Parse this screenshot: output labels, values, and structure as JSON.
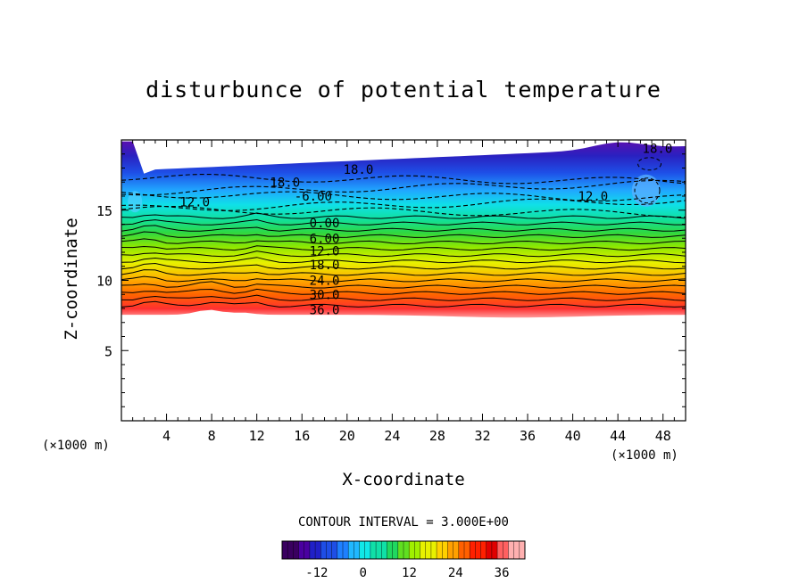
{
  "chart_data": {
    "type": "heatmap",
    "title": "disturbunce of potential temperature",
    "xlabel": "X-coordinate",
    "ylabel": "Z-coordinate",
    "x_unit": "(×1000 m)",
    "y_unit": "(×1000 m)",
    "xlim": [
      0,
      50
    ],
    "ylim": [
      0,
      20
    ],
    "xticks": [
      4,
      8,
      12,
      16,
      20,
      24,
      28,
      32,
      36,
      40,
      44,
      48
    ],
    "yticks": [
      5,
      10,
      15
    ],
    "contour_interval": "CONTOUR INTERVAL = 3.000E+00",
    "colorbar": {
      "min": -21,
      "max": 42,
      "ticks": [
        -12,
        0,
        12,
        24,
        36
      ],
      "colors": [
        "#3a0060",
        "#4a00a0",
        "#2020c8",
        "#1e4ee6",
        "#1e80ff",
        "#20b8ff",
        "#10e8e8",
        "#10e0a8",
        "#20d860",
        "#60e020",
        "#a0f000",
        "#e8f000",
        "#ffd000",
        "#ffa000",
        "#ff6000",
        "#ff2000",
        "#e00000",
        "#ff6060",
        "#ffb0b0"
      ]
    },
    "contour_labels": [
      {
        "x": 17.0,
        "z": 16.0,
        "text": "-6.00"
      },
      {
        "x": 18.0,
        "z": 14.1,
        "text": "0.00"
      },
      {
        "x": 18.0,
        "z": 13.0,
        "text": "6.00"
      },
      {
        "x": 18.0,
        "z": 12.1,
        "text": "12.0"
      },
      {
        "x": 18.0,
        "z": 11.1,
        "text": "18.0"
      },
      {
        "x": 18.0,
        "z": 10.0,
        "text": "24.0"
      },
      {
        "x": 18.0,
        "z": 9.0,
        "text": "30.0"
      },
      {
        "x": 18.0,
        "z": 7.9,
        "text": "36.0"
      },
      {
        "x": 6.5,
        "z": 15.6,
        "text": "12.0"
      },
      {
        "x": 14.5,
        "z": 17.0,
        "text": "18.0"
      },
      {
        "x": 21.0,
        "z": 17.9,
        "text": "18.0"
      },
      {
        "x": 41.8,
        "z": 16.0,
        "text": "12.0"
      },
      {
        "x": 47.5,
        "z": 19.4,
        "text": "18.0"
      }
    ]
  }
}
